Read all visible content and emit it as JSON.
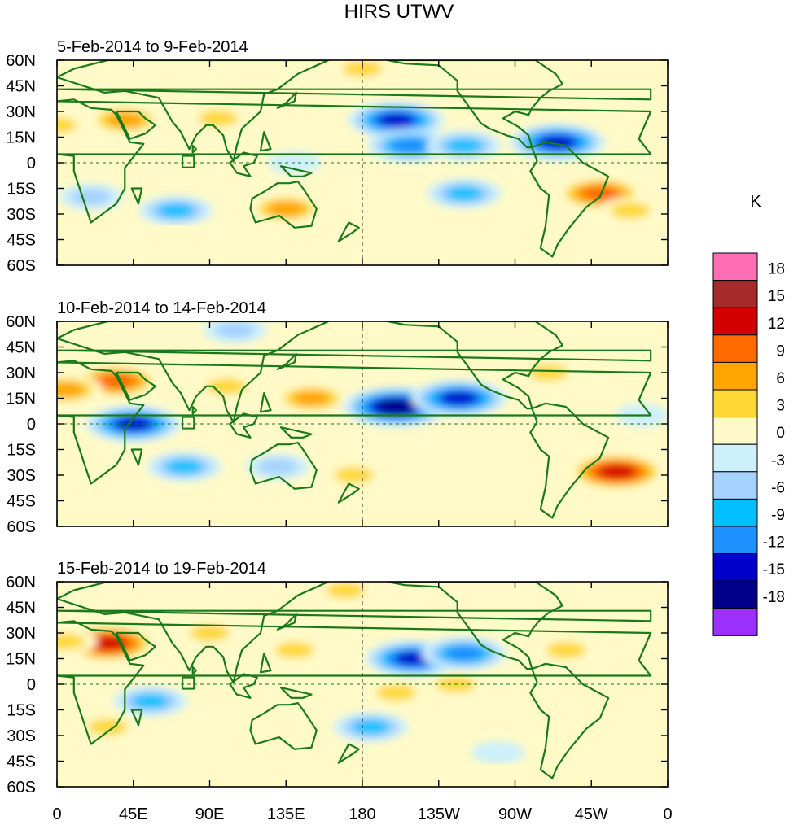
{
  "chart_data": {
    "type": "heatmap",
    "title": "HIRS UTWV",
    "colorbar": {
      "unit": "K",
      "levels": [
        18,
        15,
        12,
        9,
        6,
        3,
        0,
        -3,
        -6,
        -9,
        -12,
        -15,
        -18
      ],
      "colors": [
        "#ff6eb4",
        "#a52a2a",
        "#d40000",
        "#ff6a00",
        "#ffa500",
        "#ffd835",
        "#fffac8",
        "#cdf0fa",
        "#a6d2ff",
        "#00bfff",
        "#1e90ff",
        "#0000cd",
        "#00008b",
        "#9b30ff"
      ]
    },
    "x_ticks": [
      "0",
      "45E",
      "90E",
      "135E",
      "180",
      "135W",
      "90W",
      "45W",
      "0"
    ],
    "y_ticks": [
      "60N",
      "45N",
      "30N",
      "15N",
      "0",
      "15S",
      "30S",
      "45S",
      "60S"
    ],
    "xlim": [
      0,
      360
    ],
    "ylim": [
      -60,
      60
    ],
    "panels": [
      {
        "subtitle": "5-Feb-2014 to 9-Feb-2014",
        "anomalies": [
          {
            "lon": 0,
            "lat": 22,
            "value": 6
          },
          {
            "lon": 40,
            "lat": 25,
            "value": 9
          },
          {
            "lon": 95,
            "lat": 26,
            "value": 6
          },
          {
            "lon": 140,
            "lat": 32,
            "value": 3
          },
          {
            "lon": 135,
            "lat": -27,
            "value": 9
          },
          {
            "lon": 60,
            "lat": 40,
            "value": 3
          },
          {
            "lon": 200,
            "lat": 25,
            "value": -15
          },
          {
            "lon": 208,
            "lat": 10,
            "value": -12
          },
          {
            "lon": 240,
            "lat": 10,
            "value": -9
          },
          {
            "lon": 295,
            "lat": 12,
            "value": -15
          },
          {
            "lon": 320,
            "lat": -18,
            "value": 12
          },
          {
            "lon": 338,
            "lat": -28,
            "value": 6
          },
          {
            "lon": 70,
            "lat": -28,
            "value": -9
          },
          {
            "lon": 240,
            "lat": -18,
            "value": -9
          },
          {
            "lon": 180,
            "lat": 55,
            "value": 6
          },
          {
            "lon": 20,
            "lat": -20,
            "value": -6
          },
          {
            "lon": 140,
            "lat": 0,
            "value": -3
          },
          {
            "lon": 350,
            "lat": -5,
            "value": 3
          }
        ]
      },
      {
        "subtitle": "10-Feb-2014 to 14-Feb-2014",
        "anomalies": [
          {
            "lon": 35,
            "lat": 25,
            "value": 12
          },
          {
            "lon": 5,
            "lat": 20,
            "value": 9
          },
          {
            "lon": 100,
            "lat": 22,
            "value": 6
          },
          {
            "lon": 150,
            "lat": 15,
            "value": 9
          },
          {
            "lon": 45,
            "lat": 0,
            "value": -15
          },
          {
            "lon": 200,
            "lat": 10,
            "value": -18
          },
          {
            "lon": 237,
            "lat": 15,
            "value": -15
          },
          {
            "lon": 330,
            "lat": -28,
            "value": 15
          },
          {
            "lon": 75,
            "lat": -25,
            "value": -9
          },
          {
            "lon": 130,
            "lat": -25,
            "value": -6
          },
          {
            "lon": 175,
            "lat": -30,
            "value": 6
          },
          {
            "lon": 230,
            "lat": -10,
            "value": 3
          },
          {
            "lon": 290,
            "lat": 30,
            "value": 6
          },
          {
            "lon": 30,
            "lat": -40,
            "value": 3
          },
          {
            "lon": 345,
            "lat": 5,
            "value": -3
          },
          {
            "lon": 105,
            "lat": 55,
            "value": -6
          }
        ]
      },
      {
        "subtitle": "15-Feb-2014 to 19-Feb-2014",
        "anomalies": [
          {
            "lon": 30,
            "lat": 24,
            "value": 15
          },
          {
            "lon": 5,
            "lat": 25,
            "value": 6
          },
          {
            "lon": 140,
            "lat": 20,
            "value": 6
          },
          {
            "lon": 90,
            "lat": 30,
            "value": 6
          },
          {
            "lon": 210,
            "lat": 15,
            "value": -15
          },
          {
            "lon": 240,
            "lat": 18,
            "value": -12
          },
          {
            "lon": 55,
            "lat": -10,
            "value": -9
          },
          {
            "lon": 185,
            "lat": -25,
            "value": -9
          },
          {
            "lon": 235,
            "lat": 0,
            "value": 6
          },
          {
            "lon": 200,
            "lat": -5,
            "value": 6
          },
          {
            "lon": 30,
            "lat": -25,
            "value": 6
          },
          {
            "lon": 140,
            "lat": -30,
            "value": 3
          },
          {
            "lon": 300,
            "lat": 20,
            "value": 6
          },
          {
            "lon": 330,
            "lat": -20,
            "value": 3
          },
          {
            "lon": 170,
            "lat": 55,
            "value": 6
          },
          {
            "lon": 260,
            "lat": -40,
            "value": -3
          }
        ]
      }
    ]
  }
}
